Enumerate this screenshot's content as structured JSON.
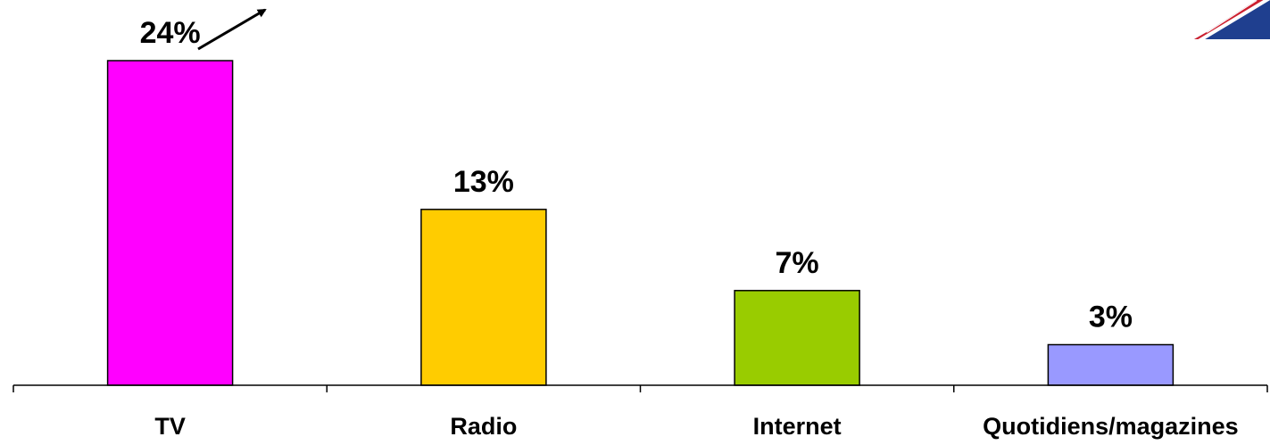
{
  "chart_data": {
    "type": "bar",
    "categories": [
      "TV",
      "Radio",
      "Internet",
      "Quotidiens/magazines"
    ],
    "values": [
      24,
      13,
      7,
      3
    ],
    "value_labels": [
      "24%",
      "13%",
      "7%",
      "3%"
    ],
    "unit": "%",
    "ylim": [
      0,
      24
    ],
    "colors": [
      "#ff00ff",
      "#ffcc00",
      "#99cc00",
      "#9999ff"
    ],
    "grid": false,
    "legend": "none",
    "annotations": [
      {
        "type": "arrow",
        "target": "TV",
        "meaning": "increase"
      },
      {
        "type": "flag",
        "icon": "uk-flag-icon",
        "placement": "top-right"
      }
    ]
  }
}
